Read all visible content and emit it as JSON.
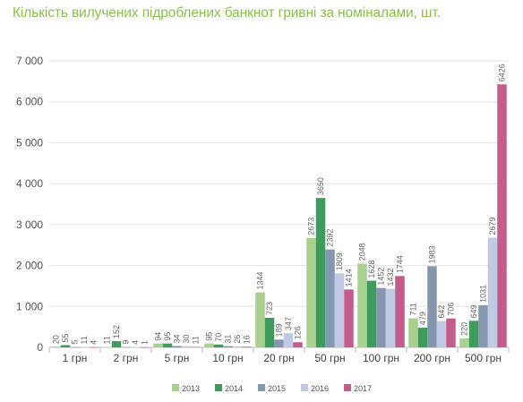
{
  "chart_data": {
    "type": "bar",
    "title": "Кількість вилучених підроблених банкнот гривні за номіналами, шт.",
    "xlabel": "",
    "ylabel": "",
    "categories": [
      "1 грн",
      "2 грн",
      "5 грн",
      "10 грн",
      "20 грн",
      "50 грн",
      "100 грн",
      "200 грн",
      "500 грн"
    ],
    "ylim": [
      0,
      7000
    ],
    "yticks": [
      {
        "value": 0,
        "label": "0"
      },
      {
        "value": 1000,
        "label": "1 000"
      },
      {
        "value": 2000,
        "label": "2 000"
      },
      {
        "value": 3000,
        "label": "3 000"
      },
      {
        "value": 4000,
        "label": "4 000"
      },
      {
        "value": 5000,
        "label": "5 000"
      },
      {
        "value": 6000,
        "label": "6 000"
      },
      {
        "value": 7000,
        "label": "7 000"
      }
    ],
    "grid": true,
    "legend_position": "bottom",
    "series": [
      {
        "name": "2013",
        "color": "#a9d18e",
        "values": [
          20,
          11,
          94,
          95,
          1344,
          2673,
          2048,
          711,
          220
        ]
      },
      {
        "name": "2014",
        "color": "#3d9b5b",
        "values": [
          55,
          152,
          95,
          70,
          723,
          3650,
          1628,
          479,
          649
        ]
      },
      {
        "name": "2015",
        "color": "#8496b0",
        "values": [
          5,
          9,
          34,
          31,
          189,
          2392,
          1452,
          1983,
          1031
        ]
      },
      {
        "name": "2016",
        "color": "#c0cae4",
        "values": [
          11,
          4,
          30,
          26,
          347,
          1809,
          1432,
          642,
          2679
        ]
      },
      {
        "name": "2017",
        "color": "#c55a8c",
        "values": [
          4,
          1,
          11,
          16,
          126,
          1414,
          1744,
          706,
          6426
        ]
      }
    ]
  }
}
